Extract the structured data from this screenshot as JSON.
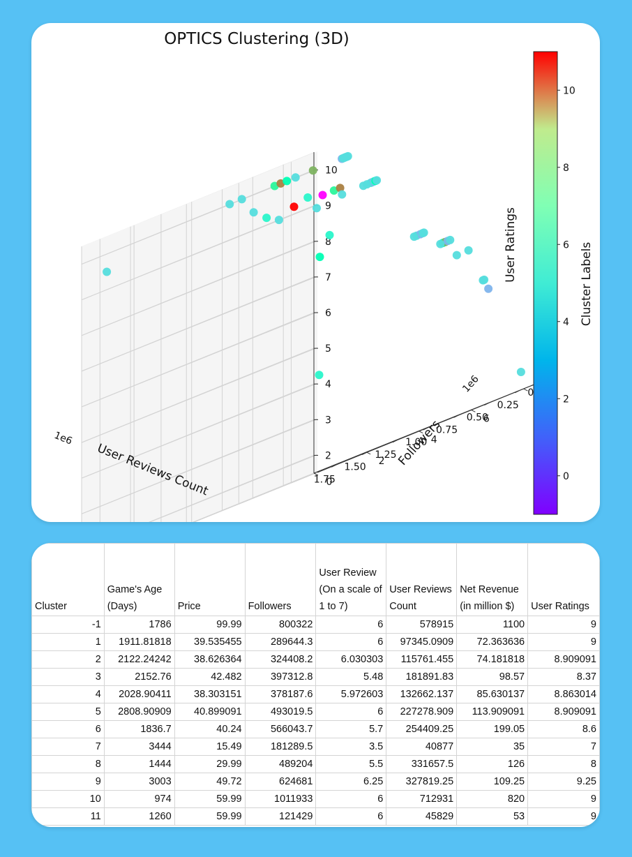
{
  "colors": {
    "background": "#56c1f4",
    "card": "#ffffff",
    "grid": "#d3d3d3",
    "pane": "#f2f2f2"
  },
  "chart_data": {
    "type": "scatter3d",
    "title": "OPTICS Clustering (3D)",
    "xlabel": "User Reviews Count",
    "ylabel": "Followers",
    "zlabel": "User Ratings",
    "x_ticks": [
      "0.00",
      "0.25",
      "0.50",
      "0.75",
      "1.00",
      "1.25",
      "1.50",
      "1.75"
    ],
    "x_offset": "1e6",
    "y_ticks": [
      "0",
      "2",
      "4",
      "6",
      "8"
    ],
    "y_offset": "1e6",
    "z_ticks": [
      "2",
      "3",
      "4",
      "5",
      "6",
      "7",
      "8",
      "9",
      "10"
    ],
    "xlim": [
      0,
      1900000
    ],
    "ylim": [
      0,
      9000000
    ],
    "zlim": [
      1.5,
      10.5
    ],
    "colormap": "rainbow",
    "colorbar": {
      "label": "Cluster Labels",
      "range": [
        -1,
        11
      ],
      "ticks": [
        "0",
        "2",
        "4",
        "6",
        "8",
        "10"
      ]
    },
    "points": [
      {
        "x": 1780000,
        "y": 400000,
        "z": 9.5,
        "c": 3
      },
      {
        "x": 600000,
        "y": 3000000,
        "z": 4.2,
        "c": 4
      },
      {
        "x": 20000,
        "y": 8000000,
        "z": 2,
        "c": 3
      },
      {
        "x": 700000,
        "y": 50000,
        "z": 10,
        "c": 3
      },
      {
        "x": 600000,
        "y": 50000,
        "z": 10,
        "c": 3
      },
      {
        "x": 600000,
        "y": 500000,
        "z": 9.5,
        "c": 3
      },
      {
        "x": 580000,
        "y": 900000,
        "z": 9.2,
        "c": 4
      },
      {
        "x": 500000,
        "y": 1000000,
        "z": 9,
        "c": 3
      },
      {
        "x": 450000,
        "y": 600000,
        "z": 10,
        "c": 6
      },
      {
        "x": 400000,
        "y": 600000,
        "z": 10,
        "c": 9
      },
      {
        "x": 350000,
        "y": 600000,
        "z": 10,
        "c": 5
      },
      {
        "x": 300000,
        "y": 700000,
        "z": 10,
        "c": 3
      },
      {
        "x": 200000,
        "y": 900000,
        "z": 10,
        "c": 8
      },
      {
        "x": 420000,
        "y": 1200000,
        "z": 9.2,
        "c": 11
      },
      {
        "x": 350000,
        "y": 1400000,
        "z": 9.3,
        "c": 4
      },
      {
        "x": 250000,
        "y": 1500000,
        "z": 9.2,
        "c": -1
      },
      {
        "x": 320000,
        "y": 1600000,
        "z": 8.9,
        "c": 3
      },
      {
        "x": 200000,
        "y": 1700000,
        "z": 9.2,
        "c": 6
      },
      {
        "x": 150000,
        "y": 1700000,
        "z": 9.2,
        "c": 9
      },
      {
        "x": 380000,
        "y": 2000000,
        "z": 7.5,
        "c": 5
      },
      {
        "x": 300000,
        "y": 2000000,
        "z": 8,
        "c": 4
      },
      {
        "x": 220000,
        "y": 2100000,
        "z": 9,
        "c": 3
      },
      {
        "x": 50000,
        "y": 1300000,
        "z": 10,
        "c": 2
      },
      {
        "x": 40000,
        "y": 1300000,
        "z": 10,
        "c": 3
      },
      {
        "x": 30000,
        "y": 1300000,
        "z": 10,
        "c": 3
      },
      {
        "x": 20000,
        "y": 1300000,
        "z": 10,
        "c": 3
      },
      {
        "x": 10000,
        "y": 1300000,
        "z": 10,
        "c": 3
      },
      {
        "x": 0,
        "y": 1300000,
        "z": 10,
        "c": 3
      },
      {
        "x": 50000,
        "y": 2400000,
        "z": 9,
        "c": 3
      },
      {
        "x": 40000,
        "y": 2400000,
        "z": 9,
        "c": 3
      },
      {
        "x": 30000,
        "y": 2400000,
        "z": 9,
        "c": 2
      },
      {
        "x": 20000,
        "y": 2400000,
        "z": 9,
        "c": 3
      },
      {
        "x": 10000,
        "y": 2400000,
        "z": 9,
        "c": 5
      },
      {
        "x": 0,
        "y": 2400000,
        "z": 9,
        "c": 3
      },
      {
        "x": 80000,
        "y": 2400000,
        "z": 9,
        "c": 3
      },
      {
        "x": 110000,
        "y": 2400000,
        "z": 9,
        "c": 3
      },
      {
        "x": 60000,
        "y": 4200000,
        "z": 7,
        "c": 3
      },
      {
        "x": 30000,
        "y": 4200000,
        "z": 7,
        "c": 2
      },
      {
        "x": 10000,
        "y": 4200000,
        "z": 7,
        "c": 3
      },
      {
        "x": 0,
        "y": 4200000,
        "z": 7,
        "c": 3
      },
      {
        "x": 80000,
        "y": 4200000,
        "z": 7,
        "c": 3
      },
      {
        "x": 60000,
        "y": 5200000,
        "z": 6.5,
        "c": 5
      },
      {
        "x": 40000,
        "y": 5200000,
        "z": 6.5,
        "c": 8
      },
      {
        "x": 20000,
        "y": 5200000,
        "z": 6.5,
        "c": 2
      },
      {
        "x": 0,
        "y": 5200000,
        "z": 6.5,
        "c": 3
      },
      {
        "x": 80000,
        "y": 5200000,
        "z": 6.5,
        "c": 3
      },
      {
        "x": 10000,
        "y": 5500000,
        "z": 6,
        "c": 3
      },
      {
        "x": 0,
        "y": 5900000,
        "z": 6,
        "c": 3
      },
      {
        "x": 10000,
        "y": 6500000,
        "z": 5,
        "c": 3
      },
      {
        "x": 0,
        "y": 6500000,
        "z": 5,
        "c": 3
      },
      {
        "x": 30000,
        "y": 6800000,
        "z": 4.7,
        "c": 2
      }
    ]
  },
  "table": {
    "headers": [
      "Cluster",
      "Game's Age (Days)",
      "Price",
      "Followers",
      "User Review (On a scale of 1 to 7)",
      "User Reviews Count",
      "Net Revenue (in million $)",
      "User Ratings"
    ],
    "rows": [
      [
        "-1",
        "1786",
        "99.99",
        "800322",
        "6",
        "578915",
        "1100",
        "9"
      ],
      [
        "1",
        "1911.81818",
        "39.535455",
        "289644.3",
        "6",
        "97345.0909",
        "72.363636",
        "9"
      ],
      [
        "2",
        "2122.24242",
        "38.626364",
        "324408.2",
        "6.030303",
        "115761.455",
        "74.181818",
        "8.909091"
      ],
      [
        "3",
        "2152.76",
        "42.482",
        "397312.8",
        "5.48",
        "181891.83",
        "98.57",
        "8.37"
      ],
      [
        "4",
        "2028.90411",
        "38.303151",
        "378187.6",
        "5.972603",
        "132662.137",
        "85.630137",
        "8.863014"
      ],
      [
        "5",
        "2808.90909",
        "40.899091",
        "493019.5",
        "6",
        "227278.909",
        "113.909091",
        "8.909091"
      ],
      [
        "6",
        "1836.7",
        "40.24",
        "566043.7",
        "5.7",
        "254409.25",
        "199.05",
        "8.6"
      ],
      [
        "7",
        "3444",
        "15.49",
        "181289.5",
        "3.5",
        "40877",
        "35",
        "7"
      ],
      [
        "8",
        "1444",
        "29.99",
        "489204",
        "5.5",
        "331657.5",
        "126",
        "8"
      ],
      [
        "9",
        "3003",
        "49.72",
        "624681",
        "6.25",
        "327819.25",
        "109.25",
        "9.25"
      ],
      [
        "10",
        "974",
        "59.99",
        "1011933",
        "6",
        "712931",
        "820",
        "9"
      ],
      [
        "11",
        "1260",
        "59.99",
        "121429",
        "6",
        "45829",
        "53",
        "9"
      ]
    ]
  }
}
